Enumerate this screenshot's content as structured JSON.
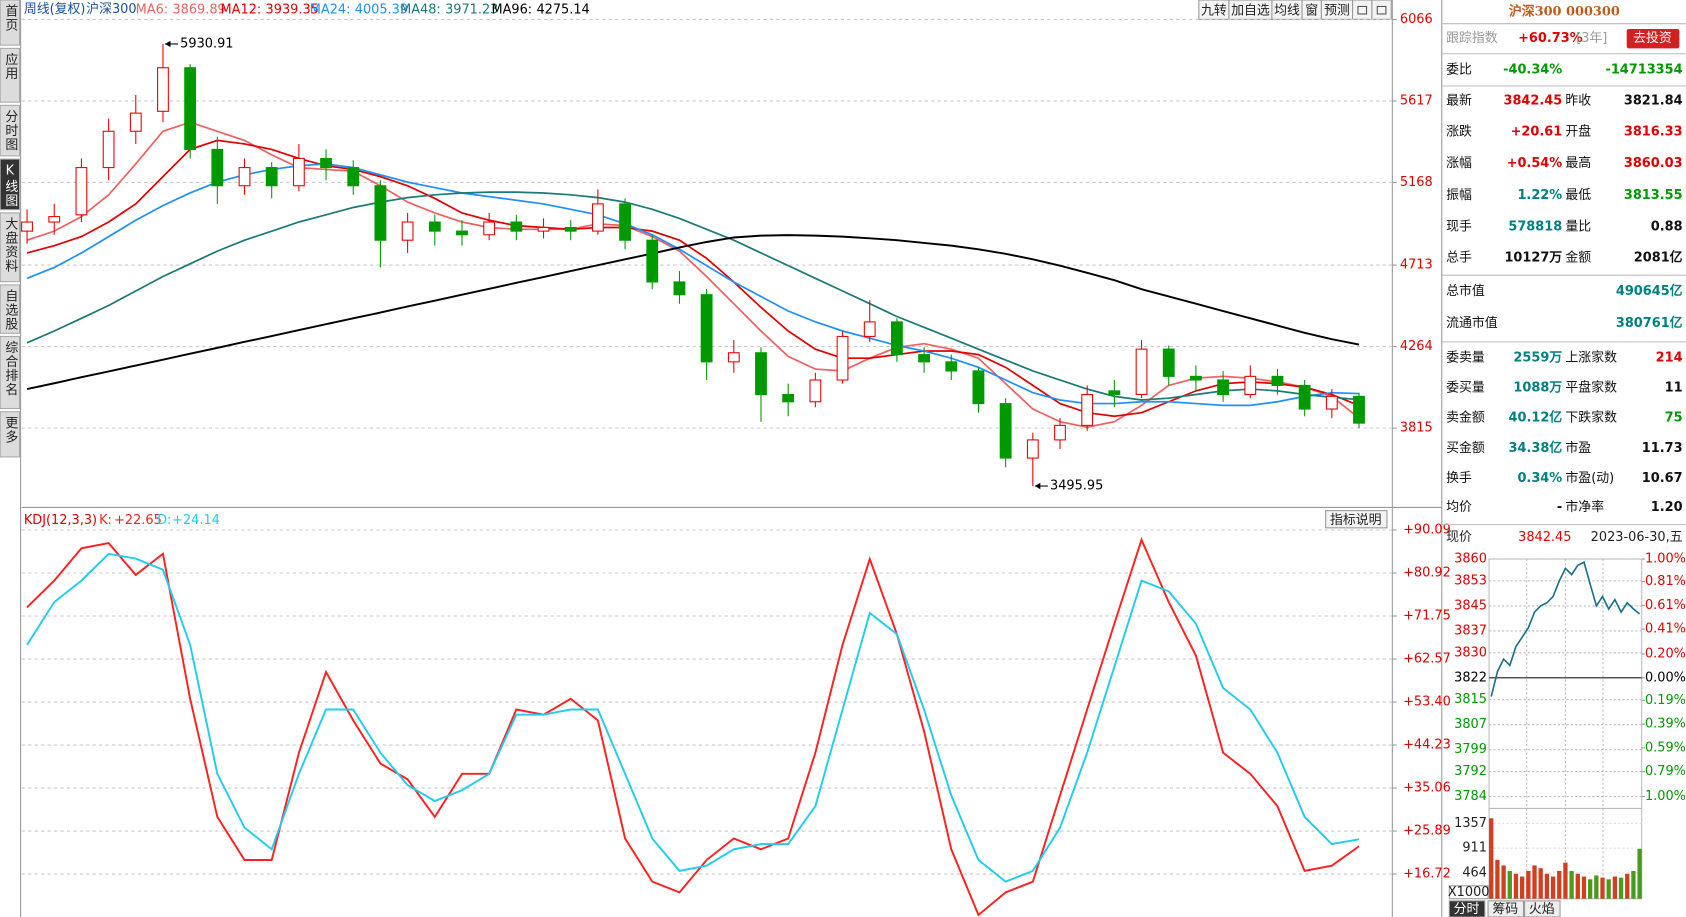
{
  "sidebar": [
    "首页",
    "应用",
    "分时图",
    "K线图",
    "大盘资料",
    "自选股",
    "综合排名",
    "更多"
  ],
  "toolbar": [
    "九转",
    "加自选",
    "均线",
    "窗",
    "预测"
  ],
  "chart_data": [
    {
      "type": "candlestick",
      "title": "周线(复权)",
      "subtitle": "沪深300",
      "categories": [
        null,
        null,
        null,
        null,
        null,
        null,
        null,
        null,
        null,
        null,
        null,
        null,
        null,
        null,
        null,
        null,
        null,
        null,
        null,
        null,
        null,
        null,
        null,
        null,
        null,
        null,
        null,
        null,
        null,
        null,
        null,
        null,
        null,
        null,
        null,
        null,
        null,
        null,
        null,
        null,
        null,
        null,
        null,
        null,
        null,
        null,
        null,
        null,
        null,
        null
      ],
      "open": [
        4900,
        4950,
        4990,
        5250,
        5450,
        5560,
        5800,
        5350,
        5150,
        5250,
        5150,
        5300,
        5250,
        5150,
        4850,
        4950,
        4900,
        4880,
        4950,
        4900,
        4920,
        4900,
        5050,
        4850,
        4620,
        4550,
        4180,
        4230,
        4000,
        3960,
        4080,
        4320,
        4400,
        4220,
        4180,
        4130,
        3950,
        3650,
        3750,
        3830,
        4020,
        4000,
        4250,
        4100,
        4080,
        4000,
        4100,
        4050,
        3920,
        3990
      ],
      "high": [
        5020,
        5050,
        5300,
        5520,
        5650,
        5930.91,
        5820,
        5420,
        5300,
        5280,
        5380,
        5350,
        5290,
        5180,
        5000,
        4990,
        4960,
        5000,
        4990,
        4970,
        4960,
        5130,
        5080,
        4880,
        4680,
        4580,
        4300,
        4260,
        4060,
        4120,
        4350,
        4520,
        4420,
        4260,
        4220,
        4150,
        3980,
        3790,
        3870,
        4050,
        4080,
        4300,
        4270,
        4160,
        4130,
        4160,
        4140,
        4080,
        4030,
        4010
      ],
      "low": [
        4830,
        4880,
        4950,
        5180,
        5380,
        5500,
        5300,
        5050,
        5100,
        5080,
        5120,
        5180,
        5100,
        4700,
        4780,
        4820,
        4820,
        4850,
        4850,
        4860,
        4850,
        4880,
        4800,
        4580,
        4500,
        4080,
        4120,
        3850,
        3880,
        3930,
        4060,
        4290,
        4180,
        4120,
        4080,
        3900,
        3600,
        3495.95,
        3700,
        3800,
        3930,
        3980,
        4050,
        4020,
        3960,
        3980,
        4000,
        3880,
        3870,
        3815
      ],
      "close": [
        4950,
        4980,
        5250,
        5450,
        5550,
        5800,
        5350,
        5150,
        5250,
        5150,
        5300,
        5250,
        5150,
        4850,
        4950,
        4900,
        4880,
        4950,
        4900,
        4920,
        4900,
        5050,
        4850,
        4620,
        4550,
        4180,
        4230,
        4000,
        3960,
        4080,
        4320,
        4400,
        4220,
        4180,
        4130,
        3950,
        3650,
        3750,
        3830,
        4000,
        4000,
        4250,
        4100,
        4080,
        4000,
        4100,
        4050,
        3920,
        3990,
        3842.45
      ],
      "up_color": "#ee0000",
      "down_color": "#009900",
      "series": [
        {
          "name": "MA6:",
          "color": "#f06060",
          "values": [
            4850,
            4900,
            4980,
            5100,
            5270,
            5450,
            5500,
            5450,
            5400,
            5320,
            5250,
            5240,
            5230,
            5150,
            5060,
            5000,
            4950,
            4920,
            4910,
            4910,
            4910,
            4940,
            4930,
            4870,
            4790,
            4650,
            4500,
            4350,
            4210,
            4140,
            4130,
            4200,
            4260,
            4280,
            4250,
            4200,
            4060,
            3920,
            3850,
            3820,
            3850,
            3940,
            4050,
            4090,
            4100,
            4090,
            4070,
            4040,
            3990,
            3869.89
          ]
        },
        {
          "name": "MA12:",
          "color": "#e00000",
          "values": [
            4780,
            4820,
            4870,
            4950,
            5050,
            5200,
            5350,
            5400,
            5380,
            5350,
            5300,
            5260,
            5240,
            5200,
            5150,
            5080,
            5000,
            4960,
            4930,
            4920,
            4910,
            4920,
            4920,
            4900,
            4850,
            4750,
            4620,
            4480,
            4350,
            4250,
            4200,
            4200,
            4220,
            4240,
            4240,
            4220,
            4150,
            4050,
            3950,
            3900,
            3880,
            3900,
            3960,
            4020,
            4060,
            4070,
            4060,
            4040,
            4000,
            3939.35
          ]
        },
        {
          "name": "MA24:",
          "color": "#1e90ff",
          "values": [
            4640,
            4700,
            4780,
            4870,
            4960,
            5040,
            5110,
            5170,
            5210,
            5240,
            5260,
            5270,
            5250,
            5210,
            5170,
            5140,
            5110,
            5090,
            5070,
            5050,
            5020,
            4990,
            4940,
            4880,
            4800,
            4710,
            4620,
            4540,
            4460,
            4400,
            4350,
            4310,
            4270,
            4240,
            4200,
            4150,
            4080,
            4010,
            3970,
            3950,
            3950,
            3960,
            3960,
            3950,
            3940,
            3940,
            3960,
            3990,
            4010,
            4005.39
          ]
        },
        {
          "name": "MA48:",
          "color": "#1a7a78",
          "values": [
            4285,
            4350,
            4420,
            4490,
            4570,
            4650,
            4720,
            4790,
            4850,
            4900,
            4950,
            4990,
            5030,
            5060,
            5085,
            5100,
            5110,
            5115,
            5115,
            5110,
            5100,
            5085,
            5060,
            5020,
            4970,
            4910,
            4850,
            4780,
            4710,
            4640,
            4570,
            4500,
            4430,
            4370,
            4310,
            4250,
            4190,
            4130,
            4080,
            4030,
            3990,
            3970,
            3980,
            4000,
            4020,
            4030,
            4020,
            4000,
            3985,
            3971.23
          ]
        },
        {
          "name": "MA96:",
          "color": "#000000",
          "values": [
            4030,
            4062,
            4095,
            4127,
            4160,
            4192,
            4225,
            4257,
            4290,
            4322,
            4355,
            4387,
            4420,
            4452,
            4485,
            4517,
            4550,
            4582,
            4615,
            4647,
            4680,
            4712,
            4745,
            4777,
            4810,
            4840,
            4865,
            4875,
            4878,
            4875,
            4870,
            4860,
            4850,
            4835,
            4820,
            4800,
            4775,
            4745,
            4710,
            4670,
            4630,
            4580,
            4540,
            4500,
            4460,
            4420,
            4380,
            4340,
            4305,
            4275.14
          ]
        }
      ],
      "ylim": [
        3390,
        6102
      ],
      "yticks": [
        6066,
        5617,
        5168,
        4713,
        4264,
        3815
      ],
      "grid": true
    },
    {
      "type": "line",
      "title": "KDJ(12,3,3)",
      "button": "指标说明",
      "categories": [
        null,
        null,
        null,
        null,
        null,
        null,
        null,
        null,
        null,
        null,
        null,
        null,
        null,
        null,
        null,
        null,
        null,
        null,
        null,
        null,
        null,
        null,
        null,
        null,
        null,
        null,
        null,
        null,
        null,
        null,
        null,
        null,
        null,
        null,
        null,
        null,
        null,
        null,
        null,
        null,
        null,
        null,
        null,
        null,
        null,
        null,
        null,
        null,
        null,
        null
      ],
      "series": [
        {
          "name": "K:",
          "color": "#ff2020",
          "value_label": "+22.65",
          "values": [
            73.6,
            79.3,
            86.2,
            87.3,
            80.5,
            85.0,
            54.1,
            28.9,
            19.7,
            19.7,
            42.6,
            59.8,
            49.5,
            40.3,
            36.9,
            28.9,
            38.1,
            38.1,
            51.8,
            50.7,
            54.1,
            49.5,
            24.3,
            15.1,
            12.8,
            19.7,
            24.3,
            22.0,
            24.3,
            42.6,
            65.6,
            83.9,
            67.9,
            47.2,
            22.0,
            8.0,
            12.8,
            15.1,
            33.5,
            51.8,
            70.1,
            88.0,
            74.7,
            63.3,
            42.6,
            38.1,
            31.2,
            17.4,
            18.5,
            22.65
          ]
        },
        {
          "name": "D:",
          "color": "#22ccee",
          "value_label": "+24.14",
          "values": [
            65.6,
            74.7,
            79.3,
            85.0,
            84.0,
            81.6,
            65.6,
            38.1,
            26.6,
            22.0,
            38.1,
            51.8,
            51.8,
            42.6,
            35.7,
            32.3,
            34.6,
            38.1,
            50.7,
            50.7,
            51.8,
            51.8,
            38.1,
            24.3,
            17.4,
            18.5,
            22.0,
            23.1,
            23.1,
            31.2,
            51.8,
            72.4,
            67.9,
            51.8,
            33.5,
            19.7,
            15.1,
            17.4,
            26.6,
            42.6,
            60.9,
            79.3,
            77.0,
            70.1,
            56.4,
            51.8,
            42.6,
            28.9,
            23.1,
            24.14
          ]
        }
      ],
      "ylim": [
        7.56,
        93.76
      ],
      "yticks": [
        {
          "value": 90.09,
          "label": "+90.09"
        },
        {
          "value": 80.92,
          "label": "+80.92"
        },
        {
          "value": 71.75,
          "label": "+71.75"
        },
        {
          "value": 62.57,
          "label": "+62.57"
        },
        {
          "value": 53.4,
          "label": "+53.40"
        },
        {
          "value": 44.23,
          "label": "+44.23"
        },
        {
          "value": 35.06,
          "label": "+35.06"
        },
        {
          "value": 25.89,
          "label": "+25.89"
        },
        {
          "value": 16.72,
          "label": "+16.72"
        }
      ],
      "grid": true
    },
    {
      "type": "intraday",
      "title": "现价",
      "date": "2023-06-30,五",
      "color": "#1a6e8a",
      "categories": [
        null,
        null,
        null,
        null,
        null,
        null,
        null,
        null,
        null,
        null,
        null,
        null,
        null,
        null,
        null,
        null,
        null,
        null,
        null,
        null,
        null,
        null,
        null,
        null,
        null
      ],
      "values": [
        3816,
        3824,
        3828,
        3826,
        3832,
        3835,
        3838,
        3843,
        3845,
        3846,
        3848,
        3853,
        3857,
        3855,
        3858,
        3859,
        3852,
        3845,
        3848,
        3844,
        3847,
        3843,
        3846,
        3844,
        3842.45
      ],
      "volume": [
        1450,
        700,
        600,
        500,
        450,
        400,
        500,
        600,
        550,
        450,
        400,
        500,
        650,
        500,
        450,
        400,
        350,
        420,
        380,
        350,
        400,
        380,
        450,
        500,
        900
      ],
      "ylim": [
        3784,
        3860
      ],
      "yticks": [
        3860,
        3853,
        3845,
        3837,
        3830,
        3822,
        3815,
        3807,
        3799,
        3792,
        3784
      ],
      "y2lim": [
        -1.0,
        1.0
      ],
      "y2ticks": [
        {
          "value": 1.0,
          "label": "1.00%"
        },
        {
          "value": 0.81,
          "label": "0.81%"
        },
        {
          "value": 0.61,
          "label": "0.61%"
        },
        {
          "value": 0.41,
          "label": "0.41%"
        },
        {
          "value": 0.2,
          "label": "0.20%"
        },
        {
          "value": 0,
          "label": "0.00%"
        },
        {
          "value": -0.19,
          "label": "0.19%"
        },
        {
          "value": -0.39,
          "label": "0.39%"
        },
        {
          "value": -0.59,
          "label": "0.59%"
        },
        {
          "value": -0.79,
          "label": "0.79%"
        },
        {
          "value": -1.0,
          "label": "1.00%"
        }
      ],
      "volume_lim": [
        0,
        1550
      ],
      "volume_ticks": [
        1357,
        911,
        464
      ],
      "volume_unit": "X1000",
      "tabs": [
        "分时",
        "筹码",
        "火焰"
      ]
    }
  ],
  "quote": {
    "title": "沪深300 000300",
    "tracking": {
      "label": "跟踪指数",
      "value": "+60.73%",
      "period": "[3年]",
      "button": "去投资"
    },
    "rows": [
      [
        "委比",
        "-40.34%",
        "-14713354"
      ],
      [
        "最新",
        "3842.45",
        "昨收",
        "3821.84"
      ],
      [
        "涨跌",
        "+20.61",
        "开盘",
        "3816.33"
      ],
      [
        "涨幅",
        "+0.54%",
        "最高",
        "3860.03"
      ],
      [
        "振幅",
        "1.22%",
        "最低",
        "3813.55"
      ],
      [
        "现手",
        "578818",
        "量比",
        "0.88"
      ],
      [
        "总手",
        "10127万",
        "金额",
        "2081亿"
      ],
      [
        "总市值",
        "490645亿"
      ],
      [
        "流通市值",
        "380761亿"
      ],
      [
        "委卖量",
        "2559万",
        "上涨家数",
        "214"
      ],
      [
        "委买量",
        "1088万",
        "平盘家数",
        "11"
      ],
      [
        "卖金额",
        "40.12亿",
        "下跌家数",
        "75"
      ],
      [
        "买金额",
        "34.38亿",
        "市盈",
        "11.73"
      ],
      [
        "换手",
        "0.34%",
        "市盈(动)",
        "10.67"
      ],
      [
        "均价",
        "-",
        "市净率",
        "1.20"
      ]
    ]
  }
}
